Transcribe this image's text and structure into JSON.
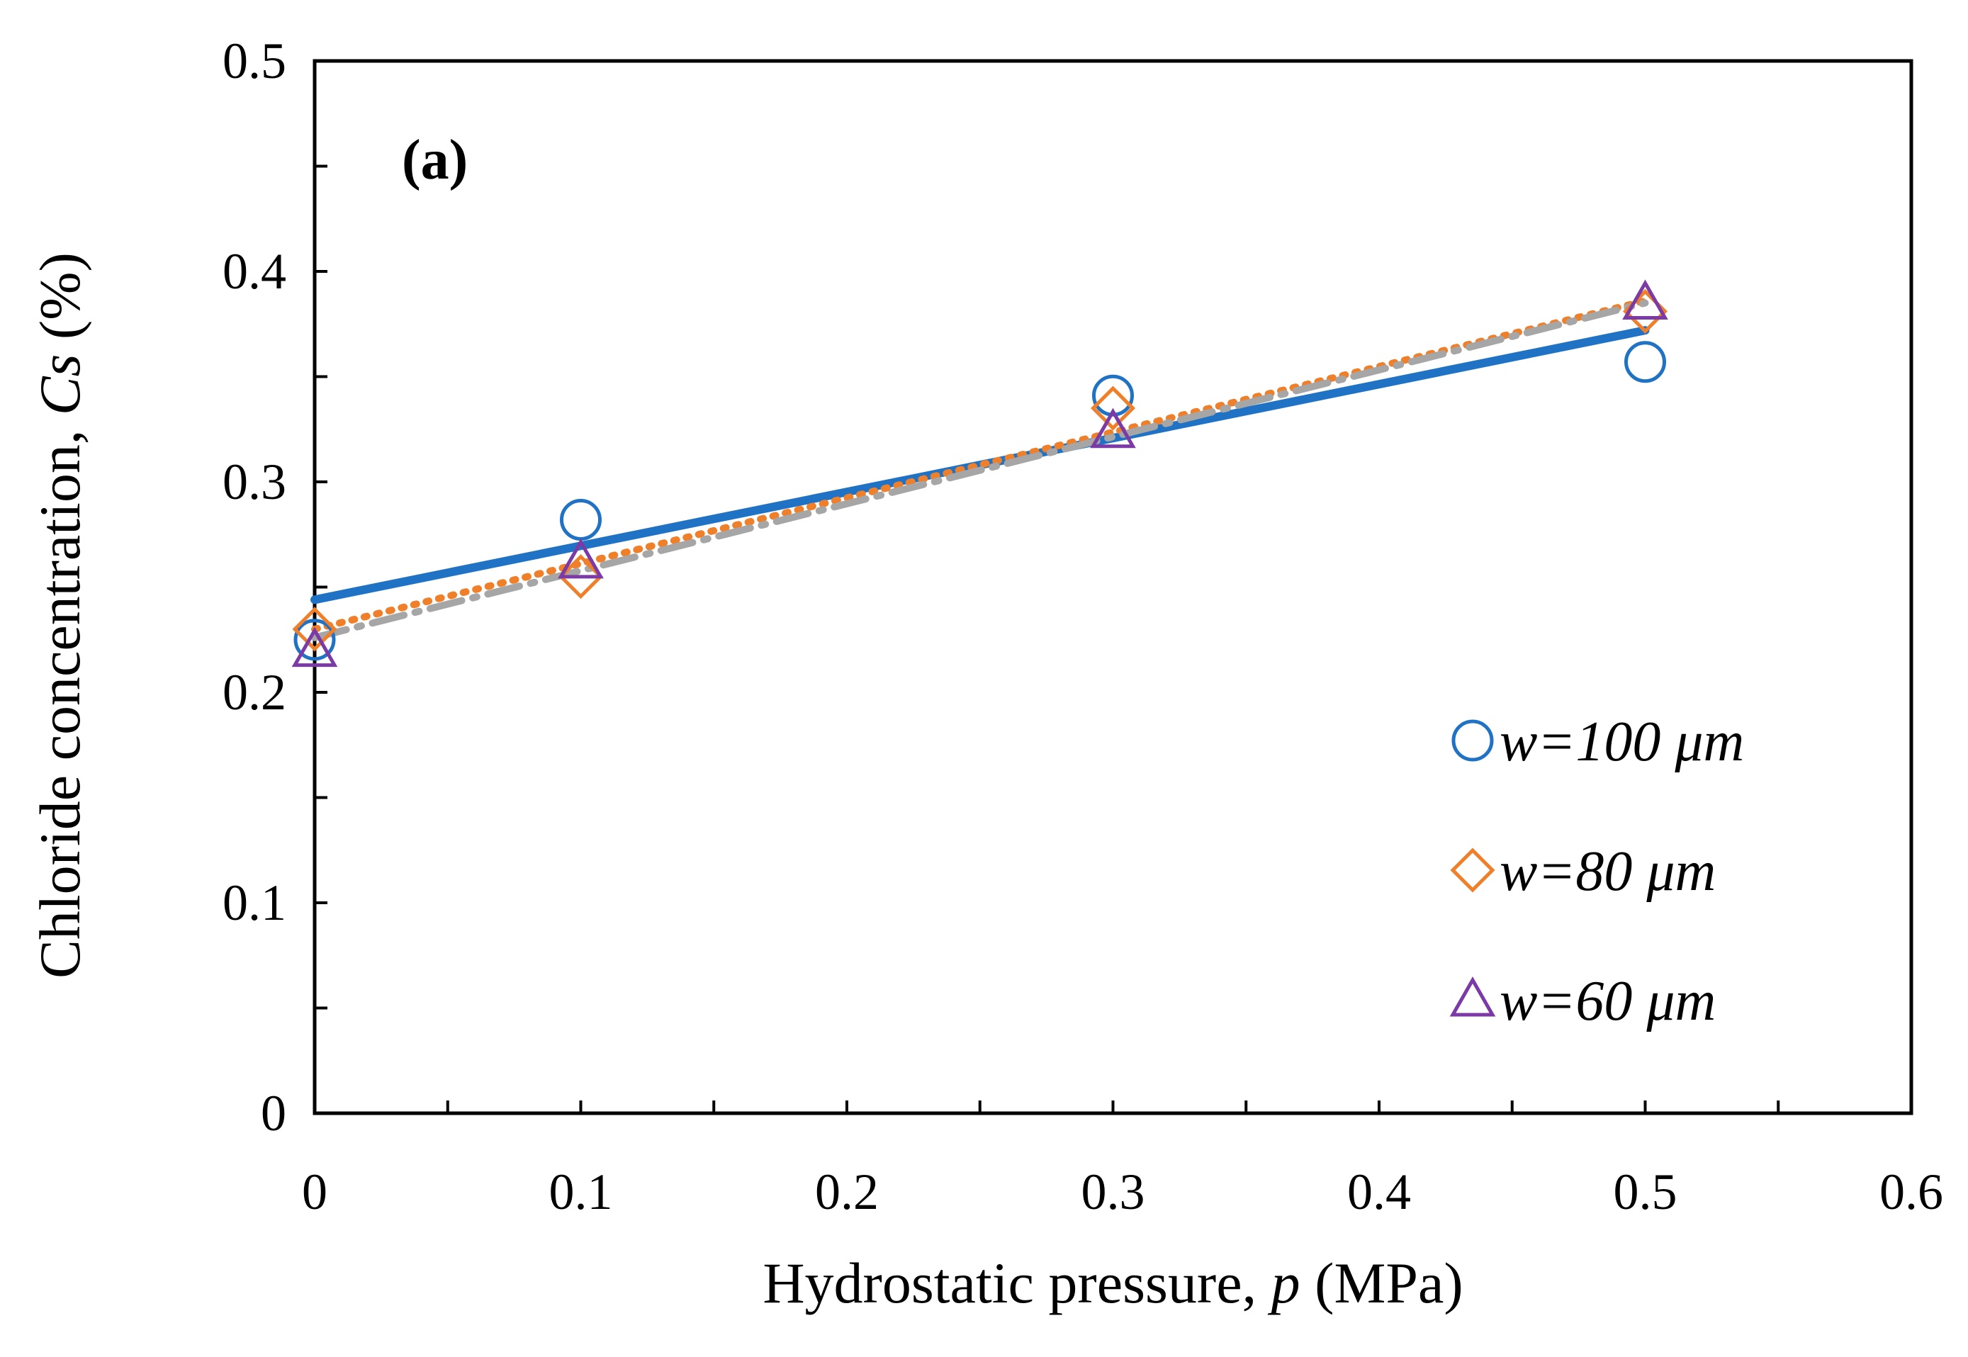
{
  "chart_data": {
    "type": "scatter",
    "panel_label": "(a)",
    "xlabel_prefix": "Hydrostatic pressure, ",
    "xlabel_var": "p",
    "xlabel_suffix": " (MPa)",
    "ylabel_prefix": "Chloride concentration, ",
    "ylabel_var": "Cs",
    "ylabel_suffix": " (%)",
    "xlim": [
      0,
      0.6
    ],
    "ylim": [
      0,
      0.5
    ],
    "x_ticks": [
      "0",
      "0.1",
      "0.2",
      "0.3",
      "0.4",
      "0.5",
      "0.6"
    ],
    "y_ticks": [
      "0",
      "0.1",
      "0.2",
      "0.3",
      "0.4",
      "0.5"
    ],
    "legend_position": "bottom-right",
    "series": [
      {
        "name": "w=100 μm",
        "marker": "circle",
        "color": "#1f72c4",
        "x": [
          0,
          0.1,
          0.3,
          0.5
        ],
        "y": [
          0.225,
          0.282,
          0.341,
          0.357
        ],
        "trend": {
          "style": "solid",
          "x": [
            0,
            0.5
          ],
          "y": [
            0.244,
            0.372
          ]
        }
      },
      {
        "name": "w=80 μm",
        "marker": "diamond",
        "color": "#f07f2a",
        "x": [
          0,
          0.1,
          0.3,
          0.5
        ],
        "y": [
          0.23,
          0.255,
          0.335,
          0.381
        ],
        "trend": {
          "style": "dotted",
          "x": [
            0,
            0.5
          ],
          "y": [
            0.23,
            0.386
          ]
        }
      },
      {
        "name": "w=60 μm",
        "marker": "triangle",
        "color": "#7b3aa5",
        "x": [
          0,
          0.1,
          0.3,
          0.5
        ],
        "y": [
          0.22,
          0.262,
          0.324,
          0.385
        ],
        "trend": {
          "style": "dashed",
          "color": "#a6a6a6",
          "x": [
            0,
            0.5
          ],
          "y": [
            0.226,
            0.385
          ]
        }
      }
    ]
  }
}
